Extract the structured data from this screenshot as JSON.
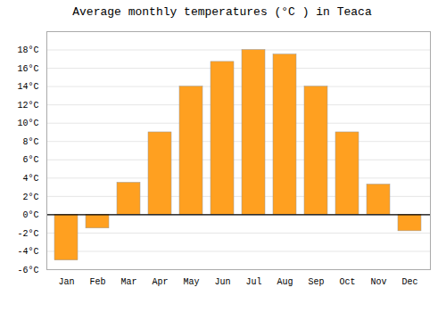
{
  "chart_data": {
    "type": "bar",
    "title": "Average monthly temperatures (°C ) in Teaca",
    "categories": [
      "Jan",
      "Feb",
      "Mar",
      "Apr",
      "May",
      "Jun",
      "Jul",
      "Aug",
      "Sep",
      "Oct",
      "Nov",
      "Dec"
    ],
    "values": [
      -5.0,
      -1.5,
      3.5,
      9.0,
      14.0,
      16.7,
      18.0,
      17.5,
      14.0,
      9.0,
      3.3,
      -1.8
    ],
    "color": "#FFA020",
    "ylim": [
      -6,
      20
    ],
    "yticks": [
      {
        "value": -6,
        "label": "-6°C"
      },
      {
        "value": -4,
        "label": "-4°C"
      },
      {
        "value": -2,
        "label": "-2°C"
      },
      {
        "value": 0,
        "label": "0°C"
      },
      {
        "value": 2,
        "label": "2°C"
      },
      {
        "value": 4,
        "label": "4°C"
      },
      {
        "value": 6,
        "label": "6°C"
      },
      {
        "value": 8,
        "label": "8°C"
      },
      {
        "value": 10,
        "label": "10°C"
      },
      {
        "value": 12,
        "label": "12°C"
      },
      {
        "value": 14,
        "label": "14°C"
      },
      {
        "value": 16,
        "label": "16°C"
      },
      {
        "value": 18,
        "label": "18°C"
      }
    ],
    "grid": true
  }
}
